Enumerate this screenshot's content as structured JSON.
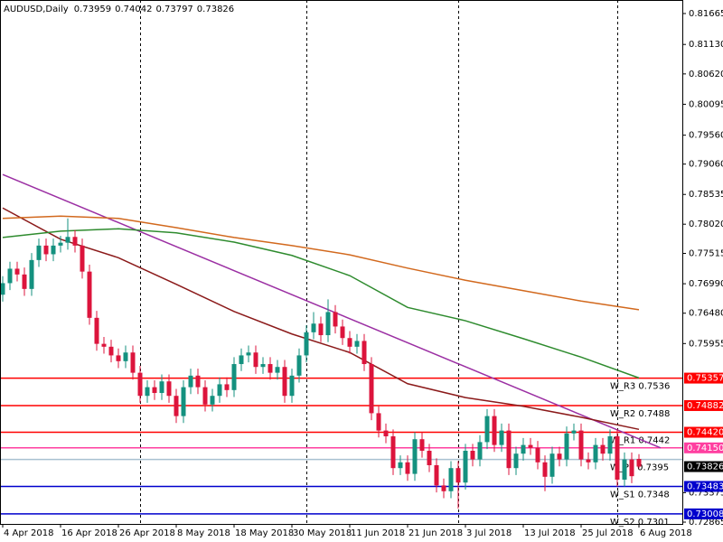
{
  "chart_data": {
    "type": "candlestick",
    "title": "AUDUSD,Daily",
    "categories": [
      "4 Apr 2018",
      null,
      null,
      null,
      null,
      null,
      null,
      null,
      "16 Apr 2018",
      null,
      null,
      null,
      null,
      null,
      null,
      null,
      "26 Apr 2018",
      null,
      null,
      null,
      null,
      null,
      null,
      null,
      "8 May 2018",
      null,
      null,
      null,
      null,
      null,
      null,
      null,
      "18 May 2018",
      null,
      null,
      null,
      null,
      null,
      null,
      null,
      "30 May 2018",
      null,
      null,
      null,
      null,
      null,
      null,
      null,
      "11 Jun 2018",
      null,
      null,
      null,
      null,
      null,
      null,
      null,
      "21 Jun 2018",
      null,
      null,
      null,
      null,
      null,
      null,
      null,
      "3 Jul 2018",
      null,
      null,
      null,
      null,
      null,
      null,
      null,
      "13 Jul 2018",
      null,
      null,
      null,
      null,
      null,
      null,
      null,
      "25 Jul 2018",
      null,
      null,
      null,
      null,
      null,
      null,
      null,
      "6 Aug 2018"
    ],
    "open": [
      0.768,
      0.77,
      0.7725,
      0.7715,
      0.769,
      0.774,
      0.7765,
      0.775,
      0.7765,
      0.777,
      0.778,
      0.7765,
      0.772,
      0.764,
      0.7595,
      0.759,
      0.7575,
      0.7565,
      0.758,
      0.7545,
      0.7505,
      0.752,
      0.751,
      0.753,
      0.7505,
      0.747,
      0.752,
      0.754,
      0.752,
      0.749,
      0.7505,
      0.7525,
      0.7515,
      0.756,
      0.7575,
      0.758,
      0.7555,
      0.756,
      0.7545,
      0.7555,
      0.7505,
      0.754,
      0.7575,
      0.7615,
      0.763,
      0.761,
      0.765,
      0.7625,
      0.7605,
      0.759,
      0.76,
      0.756,
      0.7475,
      0.7445,
      0.7435,
      0.738,
      0.739,
      0.737,
      0.743,
      0.741,
      0.7385,
      0.735,
      0.734,
      0.738,
      0.7355,
      0.741,
      0.7395,
      0.7425,
      0.747,
      0.742,
      0.7445,
      0.738,
      0.7405,
      0.742,
      0.7415,
      0.739,
      0.7365,
      0.7405,
      0.7395,
      0.744,
      0.7445,
      0.7395,
      0.739,
      0.742,
      0.7405,
      0.7435,
      0.736,
      0.7395,
      0.73959
    ],
    "high": [
      0.7712,
      0.7737,
      0.7737,
      0.7727,
      0.7752,
      0.7777,
      0.7777,
      0.7777,
      0.7782,
      0.7812,
      0.7792,
      0.7777,
      0.7732,
      0.7652,
      0.7607,
      0.7602,
      0.7587,
      0.7592,
      0.7592,
      0.7557,
      0.7532,
      0.7532,
      0.7542,
      0.7542,
      0.7517,
      0.7532,
      0.7552,
      0.7552,
      0.7532,
      0.7517,
      0.7537,
      0.7537,
      0.7572,
      0.7587,
      0.7592,
      0.7592,
      0.7572,
      0.7572,
      0.7567,
      0.7567,
      0.7552,
      0.7587,
      0.7627,
      0.765,
      0.7642,
      0.7672,
      0.7662,
      0.7637,
      0.7617,
      0.7612,
      0.7612,
      0.7572,
      0.7487,
      0.7457,
      0.7447,
      0.7402,
      0.7402,
      0.7442,
      0.7442,
      0.7422,
      0.7397,
      0.7362,
      0.7392,
      0.7392,
      0.7422,
      0.7422,
      0.7437,
      0.7482,
      0.7482,
      0.7457,
      0.7457,
      0.7417,
      0.7432,
      0.7432,
      0.7427,
      0.7402,
      0.7417,
      0.7417,
      0.7452,
      0.7457,
      0.7457,
      0.7407,
      0.7432,
      0.7432,
      0.7447,
      0.7447,
      0.7407,
      0.7407,
      0.74042
    ],
    "low": [
      0.7668,
      0.7688,
      0.7703,
      0.7678,
      0.7678,
      0.7728,
      0.7738,
      0.7738,
      0.7753,
      0.7758,
      0.7753,
      0.7708,
      0.7628,
      0.7583,
      0.7578,
      0.7563,
      0.7553,
      0.7553,
      0.7533,
      0.7493,
      0.7493,
      0.7498,
      0.7498,
      0.7493,
      0.7458,
      0.7458,
      0.7508,
      0.7508,
      0.7478,
      0.7478,
      0.7493,
      0.7503,
      0.7503,
      0.7548,
      0.7563,
      0.7543,
      0.7543,
      0.7533,
      0.7533,
      0.7493,
      0.7493,
      0.7528,
      0.7563,
      0.7603,
      0.7598,
      0.7598,
      0.7613,
      0.7593,
      0.7578,
      0.7578,
      0.7548,
      0.7463,
      0.7433,
      0.7423,
      0.7368,
      0.7368,
      0.7358,
      0.7358,
      0.7398,
      0.7373,
      0.7338,
      0.7328,
      0.7328,
      0.731,
      0.7343,
      0.7383,
      0.7383,
      0.7413,
      0.7408,
      0.7408,
      0.7368,
      0.7368,
      0.7393,
      0.7403,
      0.7378,
      0.734,
      0.7353,
      0.7383,
      0.7383,
      0.7428,
      0.7383,
      0.7378,
      0.7378,
      0.7393,
      0.7393,
      0.7348,
      0.7348,
      0.7354,
      0.73797
    ],
    "close": [
      0.77,
      0.7725,
      0.7715,
      0.769,
      0.774,
      0.7765,
      0.775,
      0.7765,
      0.777,
      0.778,
      0.7765,
      0.772,
      0.764,
      0.7595,
      0.759,
      0.7575,
      0.7565,
      0.758,
      0.7545,
      0.7505,
      0.752,
      0.751,
      0.753,
      0.7505,
      0.747,
      0.752,
      0.754,
      0.752,
      0.749,
      0.7505,
      0.7525,
      0.7515,
      0.756,
      0.7575,
      0.758,
      0.7555,
      0.756,
      0.7545,
      0.7555,
      0.7505,
      0.754,
      0.7575,
      0.7615,
      0.763,
      0.761,
      0.765,
      0.7625,
      0.7605,
      0.759,
      0.76,
      0.756,
      0.7475,
      0.7445,
      0.7435,
      0.738,
      0.739,
      0.737,
      0.743,
      0.741,
      0.7385,
      0.735,
      0.734,
      0.738,
      0.7355,
      0.741,
      0.7395,
      0.7425,
      0.747,
      0.742,
      0.7445,
      0.738,
      0.7405,
      0.742,
      0.7415,
      0.739,
      0.7365,
      0.7405,
      0.7395,
      0.744,
      0.7445,
      0.7395,
      0.739,
      0.742,
      0.7405,
      0.7435,
      0.736,
      0.7395,
      0.7366,
      0.73826
    ],
    "up_color": "#14917f",
    "down_color": "#dc143c",
    "lines": [
      {
        "color": "#9b2fa3",
        "x": [
          0,
          91
        ],
        "values": [
          0.7888,
          0.7415
        ]
      },
      {
        "color": "#8b1a1a",
        "x": [
          0,
          8,
          16,
          24,
          32,
          40,
          48,
          56,
          64,
          72,
          80,
          88
        ],
        "values": [
          0.783,
          0.7776,
          0.7744,
          0.7698,
          0.7651,
          0.7612,
          0.758,
          0.7526,
          0.7502,
          0.7487,
          0.7468,
          0.7447
        ]
      },
      {
        "color": "#2e8b2e",
        "x": [
          0,
          8,
          16,
          24,
          32,
          40,
          48,
          56,
          64,
          72,
          80,
          88
        ],
        "values": [
          0.7779,
          0.779,
          0.7794,
          0.7787,
          0.7771,
          0.7748,
          0.7713,
          0.7658,
          0.7635,
          0.7604,
          0.7572,
          0.7536
        ]
      },
      {
        "color": "#d2691e",
        "x": [
          0,
          8,
          16,
          24,
          32,
          40,
          48,
          56,
          64,
          72,
          80,
          88
        ],
        "values": [
          0.7812,
          0.7816,
          0.7812,
          0.7796,
          0.7779,
          0.7765,
          0.7749,
          0.7726,
          0.7705,
          0.7687,
          0.7669,
          0.7654
        ]
      }
    ],
    "levels": [
      {
        "value": 0.75357,
        "color": "#ff0000",
        "label": "W_R3 0.7536",
        "price_label": "0.75357"
      },
      {
        "value": 0.74882,
        "color": "#ff0000",
        "label": "W_R2 0.7488",
        "price_label": "0.74882"
      },
      {
        "value": 0.7442,
        "color": "#ff0000",
        "label": "W_R1 0.7442",
        "price_label": "0.74420"
      },
      {
        "value": 0.7415,
        "color": "#ff3fa0",
        "price_label": "0.74150"
      },
      {
        "value": 0.7395,
        "color": "#a8c0d0",
        "label": "W_PP 0.7395"
      },
      {
        "value": 0.73483,
        "color": "#0000cd",
        "label": "W_S1 0.7348",
        "price_label": "0.73483"
      },
      {
        "value": 0.73008,
        "color": "#0000cd",
        "label": "W_S2 0.7301",
        "price_label": "0.73008"
      }
    ],
    "ylim": [
      0.72834,
      0.81899
    ],
    "yticks": [
      {
        "value": 0.81665,
        "label": "0.81665"
      },
      {
        "value": 0.8113,
        "label": "0.81130"
      },
      {
        "value": 0.8062,
        "label": "0.80620"
      },
      {
        "value": 0.80095,
        "label": "0.80095"
      },
      {
        "value": 0.7956,
        "label": "0.79560"
      },
      {
        "value": 0.7906,
        "label": "0.79060"
      },
      {
        "value": 0.78535,
        "label": "0.78535"
      },
      {
        "value": 0.7802,
        "label": "0.78020"
      },
      {
        "value": 0.77515,
        "label": "0.77515"
      },
      {
        "value": 0.7699,
        "label": "0.76990"
      },
      {
        "value": 0.7648,
        "label": "0.76480"
      },
      {
        "value": 0.75955,
        "label": "0.75955"
      },
      {
        "value": 0.73375,
        "label": "0.73375"
      },
      {
        "value": 0.72865,
        "label": "0.72865"
      }
    ]
  }
}
